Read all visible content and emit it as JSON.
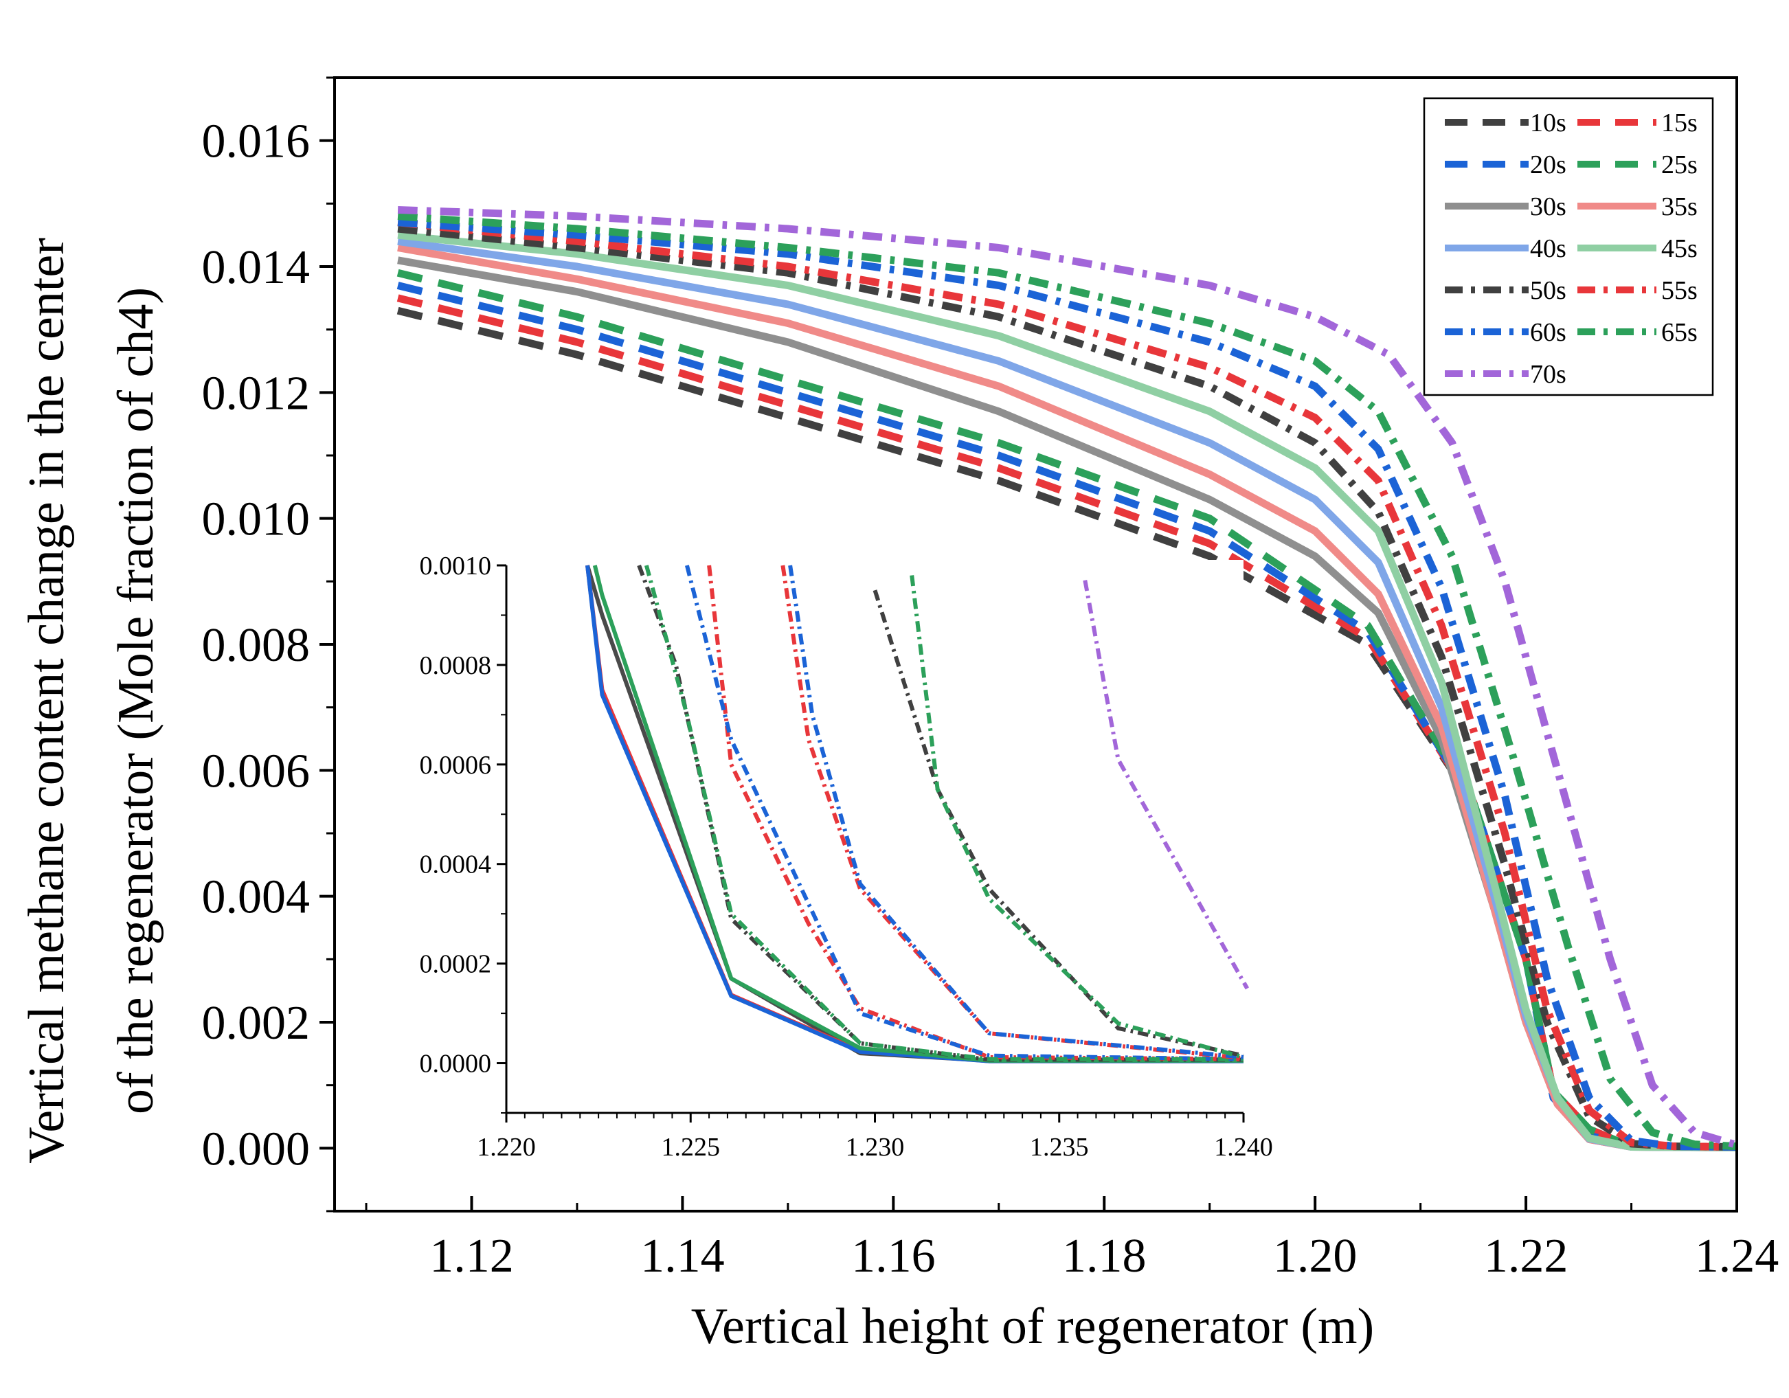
{
  "chart_data": {
    "type": "line",
    "xlabel": "Vertical height of regenerator (m)",
    "ylabel_line1": "Vertical methane content change in the center",
    "ylabel_line2": "of the regenerator (Mole fraction of ch4)",
    "xlim": [
      1.107,
      1.24
    ],
    "ylim": [
      -0.001,
      0.017
    ],
    "x_ticks": [
      1.12,
      1.14,
      1.16,
      1.18,
      1.2,
      1.22,
      1.24
    ],
    "x_tick_labels": [
      "1.12",
      "1.14",
      "1.16",
      "1.18",
      "1.20",
      "1.22",
      "1.24"
    ],
    "y_ticks": [
      0,
      0.002,
      0.004,
      0.006,
      0.008,
      0.01,
      0.012,
      0.014,
      0.016
    ],
    "y_tick_labels": [
      "0.000",
      "0.002",
      "0.004",
      "0.006",
      "0.008",
      "0.010",
      "0.012",
      "0.014",
      "0.016"
    ],
    "legend_position": "top-right",
    "series": [
      {
        "name": "10s",
        "color": "#404040",
        "dash": "dash",
        "x": [
          1.113,
          1.13,
          1.15,
          1.17,
          1.19,
          1.205,
          1.215,
          1.22,
          1.2226,
          1.226,
          1.2296,
          1.2331,
          1.24
        ],
        "y": [
          0.0133,
          0.0126,
          0.0116,
          0.0106,
          0.0094,
          0.008,
          0.0055,
          0.003,
          0.0009,
          0.0003,
          5e-05,
          2e-05,
          2e-05
        ]
      },
      {
        "name": "15s",
        "color": "#e8363a",
        "dash": "dash",
        "x": [
          1.113,
          1.13,
          1.15,
          1.17,
          1.19,
          1.205,
          1.215,
          1.22,
          1.2226,
          1.226,
          1.2296,
          1.2331,
          1.24
        ],
        "y": [
          0.0135,
          0.0128,
          0.0118,
          0.0108,
          0.0096,
          0.0081,
          0.0055,
          0.003,
          0.0009,
          0.0003,
          5e-05,
          2e-05,
          2e-05
        ]
      },
      {
        "name": "20s",
        "color": "#1b63d6",
        "dash": "dash",
        "x": [
          1.113,
          1.13,
          1.15,
          1.17,
          1.19,
          1.205,
          1.215,
          1.22,
          1.2226,
          1.226,
          1.2296,
          1.2331,
          1.24
        ],
        "y": [
          0.0137,
          0.013,
          0.012,
          0.011,
          0.0098,
          0.0082,
          0.0055,
          0.003,
          0.0008,
          0.0002,
          5e-05,
          2e-05,
          2e-05
        ]
      },
      {
        "name": "25s",
        "color": "#2ca05a",
        "dash": "dash",
        "x": [
          1.113,
          1.13,
          1.15,
          1.17,
          1.19,
          1.205,
          1.215,
          1.22,
          1.2226,
          1.226,
          1.2296,
          1.2331,
          1.24
        ],
        "y": [
          0.0139,
          0.0132,
          0.0122,
          0.0112,
          0.01,
          0.0083,
          0.0055,
          0.003,
          0.0009,
          0.0003,
          5e-05,
          2e-05,
          2e-05
        ]
      },
      {
        "name": "30s",
        "color": "#8f8f8f",
        "dash": "solid",
        "x": [
          1.113,
          1.13,
          1.15,
          1.17,
          1.19,
          1.2,
          1.206,
          1.212,
          1.217,
          1.22,
          1.223,
          1.226,
          1.23,
          1.24
        ],
        "y": [
          0.0141,
          0.0136,
          0.0128,
          0.0117,
          0.0103,
          0.0094,
          0.0085,
          0.0065,
          0.0038,
          0.002,
          0.0007,
          0.00014,
          2e-05,
          1e-05
        ]
      },
      {
        "name": "35s",
        "color": "#f08a88",
        "dash": "solid",
        "x": [
          1.113,
          1.13,
          1.15,
          1.17,
          1.19,
          1.2,
          1.206,
          1.212,
          1.217,
          1.22,
          1.223,
          1.226,
          1.23,
          1.24
        ],
        "y": [
          0.0143,
          0.0138,
          0.0131,
          0.0121,
          0.0107,
          0.0098,
          0.0088,
          0.0067,
          0.0038,
          0.002,
          0.0007,
          0.00014,
          2e-05,
          1e-05
        ]
      },
      {
        "name": "40s",
        "color": "#7fa6e8",
        "dash": "solid",
        "x": [
          1.113,
          1.13,
          1.15,
          1.17,
          1.19,
          1.2,
          1.206,
          1.212,
          1.217,
          1.22,
          1.223,
          1.226,
          1.23,
          1.24
        ],
        "y": [
          0.0144,
          0.014,
          0.0134,
          0.0125,
          0.0112,
          0.0103,
          0.0093,
          0.007,
          0.004,
          0.0021,
          0.0008,
          0.00015,
          2e-05,
          1e-05
        ]
      },
      {
        "name": "45s",
        "color": "#8fcfa3",
        "dash": "solid",
        "x": [
          1.113,
          1.13,
          1.15,
          1.17,
          1.19,
          1.2,
          1.206,
          1.212,
          1.217,
          1.22,
          1.223,
          1.226,
          1.23,
          1.24
        ],
        "y": [
          0.0145,
          0.0142,
          0.0137,
          0.0129,
          0.0117,
          0.0108,
          0.0098,
          0.0074,
          0.0042,
          0.0022,
          0.0008,
          0.00016,
          2e-05,
          1e-05
        ]
      },
      {
        "name": "50s",
        "color": "#404040",
        "dash": "dashdot",
        "x": [
          1.113,
          1.13,
          1.15,
          1.17,
          1.19,
          1.2,
          1.206,
          1.212,
          1.218,
          1.222,
          1.226,
          1.23,
          1.234,
          1.24
        ],
        "y": [
          0.0146,
          0.0143,
          0.0139,
          0.0132,
          0.0121,
          0.0112,
          0.0101,
          0.0078,
          0.0045,
          0.002,
          0.0005,
          7e-05,
          3e-05,
          2e-05
        ]
      },
      {
        "name": "55s",
        "color": "#e8363a",
        "dash": "dashdot",
        "x": [
          1.113,
          1.13,
          1.15,
          1.17,
          1.19,
          1.2,
          1.206,
          1.212,
          1.218,
          1.222,
          1.226,
          1.23,
          1.234,
          1.24
        ],
        "y": [
          0.0147,
          0.0144,
          0.014,
          0.0134,
          0.0124,
          0.0116,
          0.0106,
          0.0083,
          0.005,
          0.0022,
          0.0006,
          9e-05,
          3e-05,
          2e-05
        ]
      },
      {
        "name": "60s",
        "color": "#1b63d6",
        "dash": "dashdot",
        "x": [
          1.113,
          1.13,
          1.15,
          1.17,
          1.19,
          1.2,
          1.206,
          1.212,
          1.218,
          1.222,
          1.226,
          1.23,
          1.234,
          1.24
        ],
        "y": [
          0.0147,
          0.0145,
          0.0142,
          0.0137,
          0.0128,
          0.0121,
          0.0111,
          0.0089,
          0.0056,
          0.0027,
          0.0008,
          0.00012,
          3e-05,
          2e-05
        ]
      },
      {
        "name": "65s",
        "color": "#2ca05a",
        "dash": "dashdot",
        "x": [
          1.113,
          1.13,
          1.15,
          1.17,
          1.19,
          1.2,
          1.206,
          1.213,
          1.219,
          1.224,
          1.228,
          1.232,
          1.236,
          1.24
        ],
        "y": [
          0.0148,
          0.0146,
          0.0143,
          0.0139,
          0.0131,
          0.0125,
          0.0117,
          0.0094,
          0.0061,
          0.0032,
          0.0011,
          0.00025,
          6e-05,
          3e-05
        ]
      },
      {
        "name": "70s",
        "color": "#a266d9",
        "dash": "dashdot",
        "x": [
          1.113,
          1.13,
          1.15,
          1.17,
          1.19,
          1.2,
          1.207,
          1.213,
          1.218,
          1.223,
          1.228,
          1.232,
          1.236,
          1.24
        ],
        "y": [
          0.0149,
          0.0148,
          0.0146,
          0.0143,
          0.0137,
          0.0132,
          0.0126,
          0.0112,
          0.009,
          0.006,
          0.003,
          0.001,
          0.00025,
          5e-05
        ]
      }
    ],
    "inset": {
      "xlim": [
        1.22,
        1.24
      ],
      "ylim": [
        -0.0001,
        0.001
      ],
      "x_ticks": [
        1.22,
        1.225,
        1.23,
        1.235,
        1.24
      ],
      "x_tick_labels": [
        "1.220",
        "1.225",
        "1.230",
        "1.235",
        "1.240"
      ],
      "y_ticks": [
        0,
        0.0002,
        0.0004,
        0.0006,
        0.0008,
        0.001
      ],
      "y_tick_labels": [
        "0.0000",
        "0.0002",
        "0.0004",
        "0.0006",
        "0.0008",
        "0.0010"
      ],
      "series": [
        {
          "name": "30s",
          "color": "#4a4a4a",
          "dash": "solid",
          "x": [
            1.2222,
            1.2226,
            1.2261,
            1.2296,
            1.2331,
            1.24
          ],
          "y": [
            0.001,
            0.0009,
            0.00017,
            2e-05,
            5e-06,
            5e-06
          ]
        },
        {
          "name": "35s",
          "color": "#e8363a",
          "dash": "solid",
          "x": [
            1.2222,
            1.2226,
            1.2261,
            1.2296,
            1.2331,
            1.24
          ],
          "y": [
            0.001,
            0.00075,
            0.000137,
            2.5e-05,
            4e-06,
            4e-06
          ]
        },
        {
          "name": "40s",
          "color": "#1b63d6",
          "dash": "solid",
          "x": [
            1.2222,
            1.2226,
            1.2261,
            1.2296,
            1.2331,
            1.24
          ],
          "y": [
            0.001,
            0.00074,
            0.000135,
            2.3e-05,
            4e-06,
            4e-06
          ]
        },
        {
          "name": "45s",
          "color": "#2ca05a",
          "dash": "solid",
          "x": [
            1.2224,
            1.2226,
            1.2261,
            1.2296,
            1.2331,
            1.24
          ],
          "y": [
            0.001,
            0.00094,
            0.00017,
            3e-05,
            5e-06,
            5e-06
          ]
        },
        {
          "name": "50s",
          "color": "#404040",
          "dash": "dashdot",
          "x": [
            1.2236,
            1.2246,
            1.2261,
            1.2296,
            1.2331,
            1.24
          ],
          "y": [
            0.001,
            0.0008,
            0.00029,
            4e-05,
            7e-06,
            7e-06
          ]
        },
        {
          "name": "55s",
          "color": "#e8363a",
          "dash": "dashdot",
          "x": [
            1.2255,
            1.2261,
            1.2282,
            1.2296,
            1.2331,
            1.24
          ],
          "y": [
            0.001,
            0.0006,
            0.00028,
            0.00011,
            1.2e-05,
            8e-06
          ]
        },
        {
          "name": "60s",
          "color": "#1b63d6",
          "dash": "dashdot",
          "x": [
            1.2249,
            1.2261,
            1.2296,
            1.2331,
            1.24
          ],
          "y": [
            0.001,
            0.00065,
            0.0001,
            1.5e-05,
            8e-06
          ]
        },
        {
          "name": "65s",
          "color": "#2ca05a",
          "dash": "dashdot",
          "x": [
            1.2238,
            1.2249,
            1.2261,
            1.2296,
            1.2331,
            1.24
          ],
          "y": [
            0.001,
            0.0007,
            0.0003,
            4e-05,
            8e-06,
            8e-06
          ]
        },
        {
          "name": "55s-b",
          "color": "#e8363a",
          "dash": "dashdot",
          "x": [
            1.2275,
            1.2282,
            1.2296,
            1.2331,
            1.24
          ],
          "y": [
            0.001,
            0.00065,
            0.00035,
            6e-05,
            1e-05
          ]
        },
        {
          "name": "60s-b",
          "color": "#1b63d6",
          "dash": "dashdot",
          "x": [
            1.2277,
            1.2283,
            1.2296,
            1.2331,
            1.24
          ],
          "y": [
            0.001,
            0.0007,
            0.00036,
            6e-05,
            1.2e-05
          ]
        },
        {
          "name": "50s-b",
          "color": "#404040",
          "dash": "dashdot",
          "x": [
            1.23,
            1.2317,
            1.2331,
            1.2366,
            1.24
          ],
          "y": [
            0.00095,
            0.00055,
            0.00035,
            7e-05,
            1.5e-05
          ]
        },
        {
          "name": "65s-b",
          "color": "#2ca05a",
          "dash": "dashdot",
          "x": [
            1.231,
            1.2317,
            1.2331,
            1.2366,
            1.24
          ],
          "y": [
            0.00098,
            0.00055,
            0.00033,
            8e-05,
            1.2e-05
          ]
        },
        {
          "name": "70s",
          "color": "#a266d9",
          "dash": "dashdot",
          "x": [
            1.2357,
            1.2366,
            1.2401
          ],
          "y": [
            0.00097,
            0.00061,
            0.00015
          ]
        }
      ]
    },
    "legend": [
      {
        "label": "10s",
        "color": "#404040",
        "dash": "dash"
      },
      {
        "label": "15s",
        "color": "#e8363a",
        "dash": "dash"
      },
      {
        "label": "20s",
        "color": "#1b63d6",
        "dash": "dash"
      },
      {
        "label": "25s",
        "color": "#2ca05a",
        "dash": "dash"
      },
      {
        "label": "30s",
        "color": "#8f8f8f",
        "dash": "solid"
      },
      {
        "label": "35s",
        "color": "#f08a88",
        "dash": "solid"
      },
      {
        "label": "40s",
        "color": "#7fa6e8",
        "dash": "solid"
      },
      {
        "label": "45s",
        "color": "#8fcfa3",
        "dash": "solid"
      },
      {
        "label": "50s",
        "color": "#404040",
        "dash": "dashdot"
      },
      {
        "label": "55s",
        "color": "#e8363a",
        "dash": "dashdot"
      },
      {
        "label": "60s",
        "color": "#1b63d6",
        "dash": "dashdot"
      },
      {
        "label": "65s",
        "color": "#2ca05a",
        "dash": "dashdot"
      },
      {
        "label": "70s",
        "color": "#a266d9",
        "dash": "dashdot"
      }
    ]
  }
}
